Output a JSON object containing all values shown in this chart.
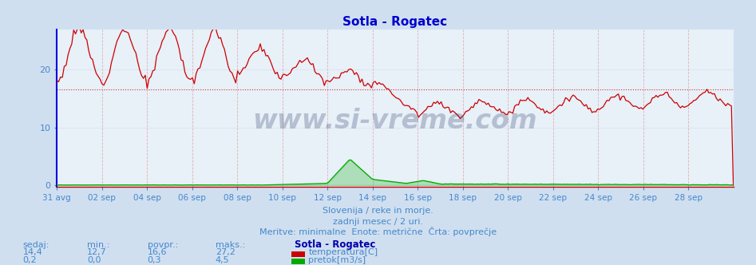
{
  "title": "Sotla - Rogatec",
  "title_color": "#0000cc",
  "background_color": "#d0dff0",
  "plot_bg_color": "#e8f0f8",
  "grid_color_v": "#dd8888",
  "grid_color_h": "#aaaacc",
  "avg_line_color": "#cc0000",
  "avg_value_temp": 16.6,
  "xmin": 0,
  "xmax": 360,
  "ymin": 0,
  "ymax": 27,
  "x_tick_labels": [
    "31 avg",
    "02 sep",
    "04 sep",
    "06 sep",
    "08 sep",
    "10 sep",
    "12 sep",
    "14 sep",
    "16 sep",
    "18 sep",
    "20 sep",
    "22 sep",
    "24 sep",
    "26 sep",
    "28 sep"
  ],
  "x_tick_positions": [
    0,
    24,
    48,
    72,
    96,
    120,
    144,
    168,
    192,
    216,
    240,
    264,
    288,
    312,
    336
  ],
  "footer_line1": "Slovenija / reke in morje.",
  "footer_line2": "zadnji mesec / 2 uri.",
  "footer_line3": "Meritve: minimalne  Enote: metrične  Črta: povprečje",
  "footer_color": "#4488cc",
  "watermark": "www.si-vreme.com",
  "watermark_color": "#1a3060",
  "legend_title": "Sotla - Rogatec",
  "legend_title_color": "#0000aa",
  "temp_label": "temperatura[C]",
  "flow_label": "pretok[m3/s]",
  "temp_color": "#cc0000",
  "flow_color": "#00aa00",
  "stats_color": "#4488cc",
  "left_spine_color": "#0000dd",
  "bottom_spine_color": "#cc0000",
  "sedaj_temp": "14,4",
  "min_temp": "12,7",
  "povpr_temp": "16,6",
  "maks_temp": "27,2",
  "sedaj_flow": "0,2",
  "min_flow": "0,0",
  "povpr_flow": "0,3",
  "maks_flow": "4,5"
}
